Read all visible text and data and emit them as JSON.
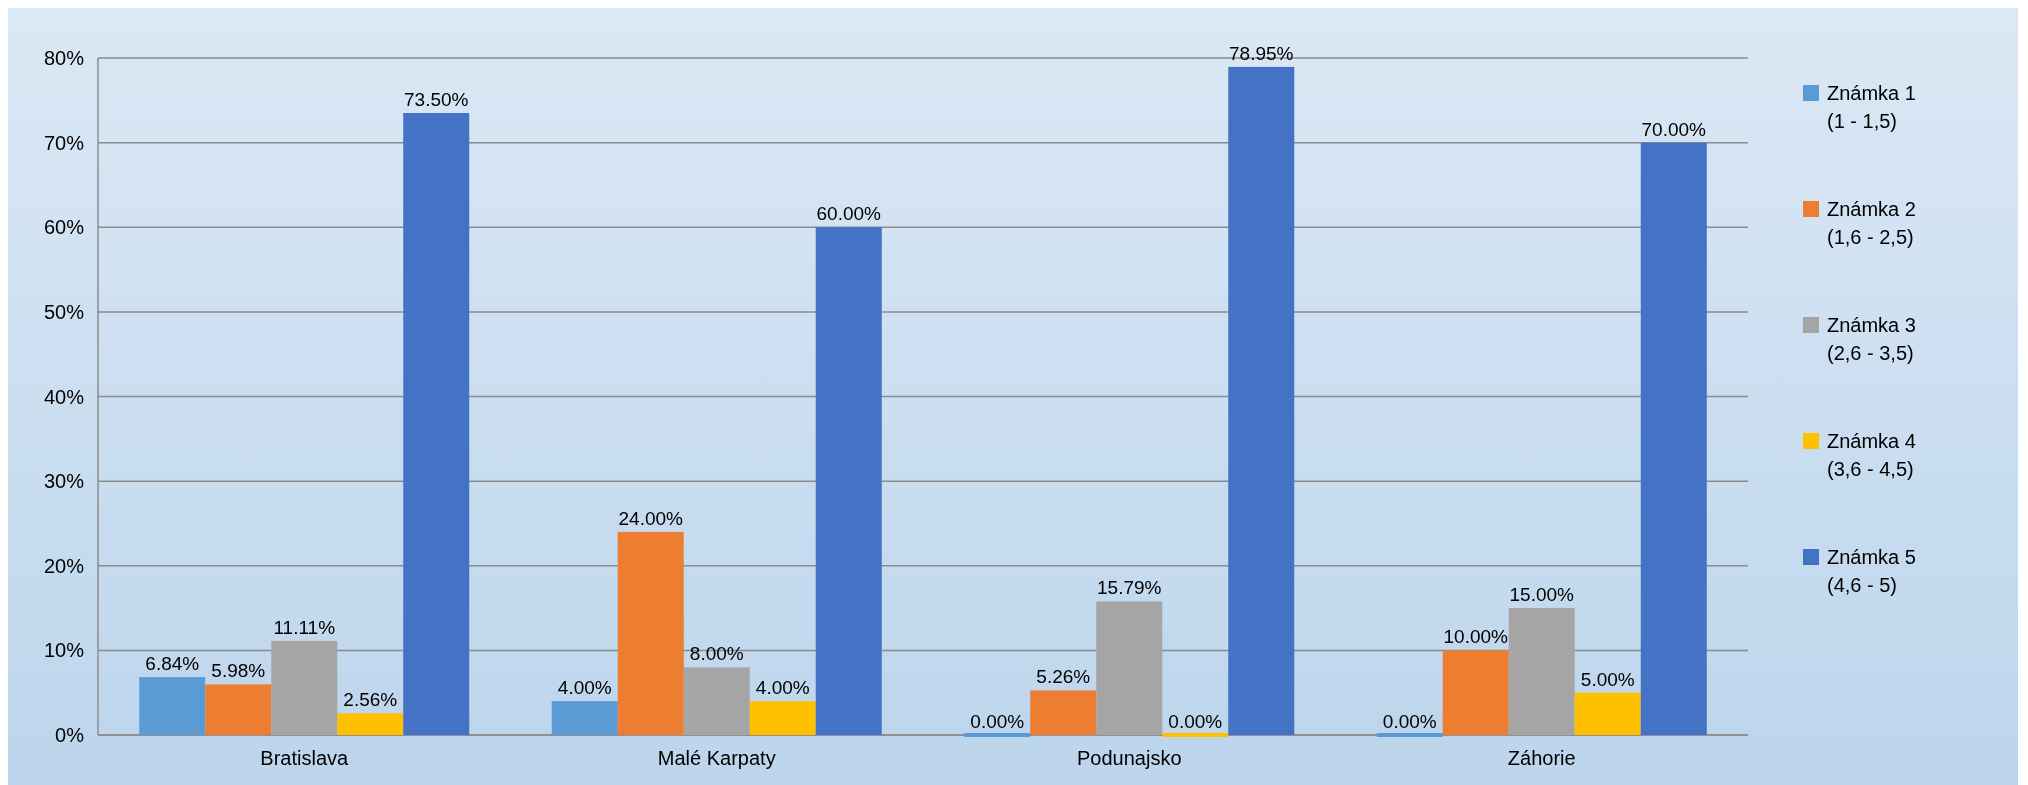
{
  "chart_data": {
    "type": "bar",
    "categories": [
      "Bratislava",
      "Malé Karpaty",
      "Podunajsko",
      "Záhorie"
    ],
    "series": [
      {
        "name": "Známka 1 (1 - 1,5)",
        "color": "#5b9bd5",
        "values": [
          6.84,
          4,
          0,
          0
        ],
        "value_labels": [
          "6.84%",
          "4.00%",
          "0.00%",
          "0.00%"
        ]
      },
      {
        "name": "Známka 2 (1,6 - 2,5)",
        "color": "#ed7d31",
        "values": [
          5.98,
          24,
          5.26,
          10
        ],
        "value_labels": [
          "5.98%",
          "24.00%",
          "5.26%",
          "10.00%"
        ]
      },
      {
        "name": "Známka 3 (2,6 - 3,5)",
        "color": "#a5a5a5",
        "values": [
          11.11,
          8,
          15.79,
          15
        ],
        "value_labels": [
          "11.11%",
          "8.00%",
          "15.79%",
          "15.00%"
        ]
      },
      {
        "name": "Známka 4 (3,6 - 4,5)",
        "color": "#ffc000",
        "values": [
          2.56,
          4,
          0,
          5
        ],
        "value_labels": [
          "2.56%",
          "4.00%",
          "0.00%",
          "5.00%"
        ]
      },
      {
        "name": "Známka 5 (4,6 - 5)",
        "color": "#4472c4",
        "values": [
          73.5,
          60,
          78.95,
          70
        ],
        "value_labels": [
          "73.50%",
          "60.00%",
          "78.95%",
          "70.00%"
        ]
      }
    ],
    "ylim": [
      0,
      80
    ],
    "yticks": [
      {
        "value": 0,
        "label": "0%"
      },
      {
        "value": 10,
        "label": "10%"
      },
      {
        "value": 20,
        "label": "20%"
      },
      {
        "value": 30,
        "label": "30%"
      },
      {
        "value": 40,
        "label": "40%"
      },
      {
        "value": 50,
        "label": "50%"
      },
      {
        "value": 60,
        "label": "60%"
      },
      {
        "value": 70,
        "label": "70%"
      },
      {
        "value": 80,
        "label": "80%"
      }
    ],
    "grid": "y",
    "legend": "right"
  }
}
